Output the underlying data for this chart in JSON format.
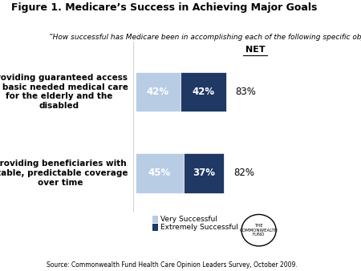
{
  "title": "Figure 1. Medicare’s Success in Achieving Major Goals",
  "subtitle": "“How successful has Medicare been in accomplishing each of the following specific objectives?”",
  "categories": [
    "Providing guaranteed access\nto basic needed medical care\nfor the elderly and the\ndisabled",
    "Providing beneficiaries with\nstable, predictable coverage\nover time"
  ],
  "very_successful": [
    42,
    45
  ],
  "extremely_successful": [
    42,
    37
  ],
  "net": [
    "83%",
    "82%"
  ],
  "color_very": "#b8cce4",
  "color_extremely": "#1f3864",
  "source": "Source: Commonwealth Fund Health Care Opinion Leaders Survey, October 2009.",
  "legend_very": "Very Successful",
  "legend_extremely": "Extremely Successful",
  "net_label": "NET",
  "bg_color": "#ffffff"
}
